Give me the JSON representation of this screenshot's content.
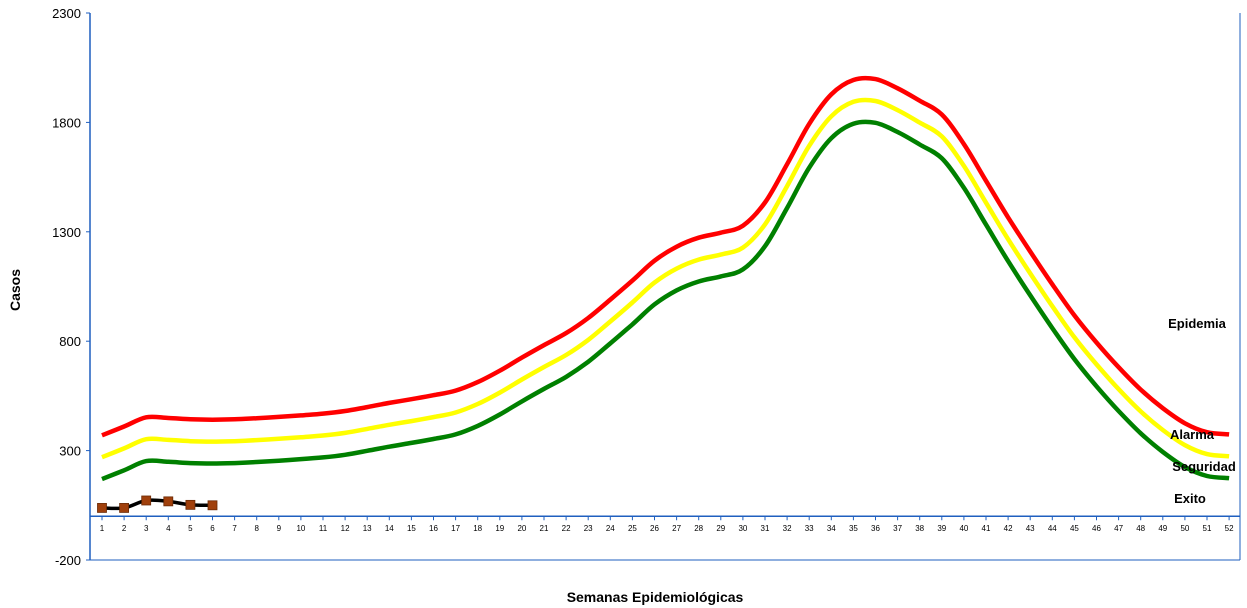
{
  "chart_data": {
    "type": "line",
    "xlabel": "Semanas Epidemiológicas",
    "ylabel": "Casos",
    "ylim": [
      -200,
      2300
    ],
    "yticks": [
      -200,
      300,
      800,
      1300,
      1800,
      2300
    ],
    "weeks": [
      1,
      2,
      3,
      4,
      5,
      6,
      7,
      8,
      9,
      10,
      11,
      12,
      13,
      14,
      15,
      16,
      17,
      18,
      19,
      20,
      21,
      22,
      23,
      24,
      25,
      26,
      27,
      28,
      29,
      30,
      31,
      32,
      33,
      34,
      35,
      36,
      37,
      38,
      39,
      40,
      41,
      42,
      43,
      44,
      45,
      46,
      47,
      48,
      49,
      50,
      51,
      52
    ],
    "grid": false,
    "zone_labels": [
      "Epidemia",
      "Alarma",
      "Seguridad",
      "Exito"
    ],
    "series": [
      {
        "color": "#ff0000",
        "values": [
          370,
          410,
          452,
          449,
          443,
          441,
          443,
          448,
          454,
          461,
          469,
          481,
          499,
          518,
          535,
          553,
          574,
          613,
          665,
          725,
          782,
          837,
          906,
          990,
          1077,
          1168,
          1232,
          1273,
          1296,
          1328,
          1434,
          1609,
          1793,
          1928,
          1994,
          1998,
          1956,
          1899,
          1836,
          1701,
          1533,
          1366,
          1210,
          1060,
          918,
          794,
          681,
          579,
          494,
          425,
          384,
          374
        ]
      },
      {
        "color": "#ffff00",
        "values": [
          270,
          310,
          352,
          349,
          343,
          341,
          343,
          348,
          354,
          361,
          369,
          381,
          399,
          418,
          435,
          453,
          474,
          513,
          565,
          625,
          682,
          737,
          806,
          890,
          977,
          1068,
          1132,
          1173,
          1196,
          1228,
          1334,
          1509,
          1693,
          1828,
          1894,
          1898,
          1856,
          1799,
          1736,
          1601,
          1433,
          1266,
          1110,
          960,
          818,
          694,
          581,
          479,
          394,
          325,
          284,
          274
        ]
      },
      {
        "color": "#008000",
        "values": [
          170,
          210,
          252,
          249,
          243,
          241,
          243,
          248,
          254,
          261,
          269,
          281,
          299,
          318,
          335,
          353,
          374,
          413,
          465,
          525,
          582,
          637,
          706,
          790,
          877,
          968,
          1032,
          1073,
          1096,
          1128,
          1234,
          1409,
          1593,
          1728,
          1794,
          1798,
          1756,
          1699,
          1636,
          1501,
          1333,
          1166,
          1010,
          860,
          718,
          594,
          481,
          379,
          294,
          225,
          184,
          174
        ]
      },
      {
        "color": "#000000",
        "marker_color": "#a0400c",
        "values": [
          38,
          38,
          72,
          68,
          52,
          50
        ]
      }
    ]
  }
}
